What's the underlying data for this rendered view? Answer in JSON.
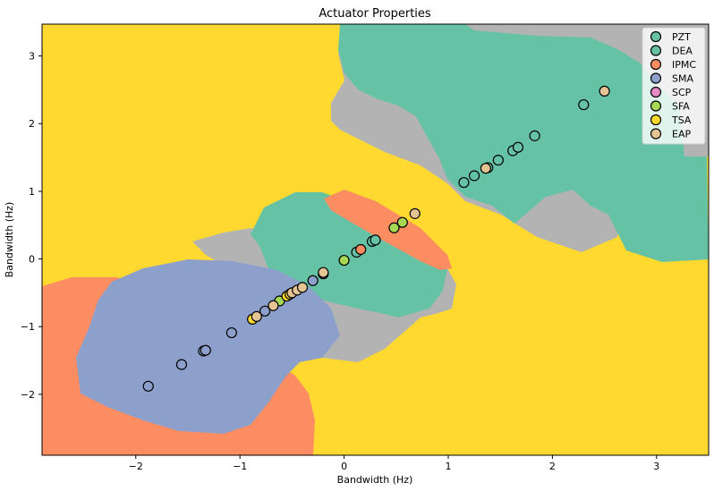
{
  "chart_data": {
    "type": "scatter",
    "title": "Actuator Properties",
    "xlabel": "Bandwidth (Hz)",
    "ylabel": "Bandwidth (Hz)",
    "xlim": [
      -2.9,
      3.5
    ],
    "ylim": [
      -2.9,
      3.47
    ],
    "xticks": [
      -2,
      -1,
      0,
      1,
      2,
      3
    ],
    "yticks": [
      -2,
      -1,
      0,
      1,
      2,
      3
    ],
    "xtick_labels": [
      "−2",
      "−1",
      "0",
      "1",
      "2",
      "3"
    ],
    "ytick_labels": [
      "−2",
      "−1",
      "0",
      "1",
      "2",
      "3"
    ],
    "legend_position": "top-right",
    "background_regions": "decision regions per class",
    "series": [
      {
        "name": "PZT",
        "color": "#66c2a5",
        "points": []
      },
      {
        "name": "DEA",
        "color": "#66c2a5",
        "points": [
          [
            0.12,
            0.1
          ],
          [
            0.27,
            0.26
          ],
          [
            0.3,
            0.28
          ],
          [
            1.15,
            1.13
          ],
          [
            1.25,
            1.23
          ],
          [
            1.38,
            1.35
          ],
          [
            1.48,
            1.46
          ],
          [
            1.62,
            1.6
          ],
          [
            1.67,
            1.65
          ],
          [
            1.83,
            1.82
          ],
          [
            2.3,
            2.28
          ]
        ]
      },
      {
        "name": "IPMC",
        "color": "#fc8d62",
        "points": [
          [
            0.16,
            0.14
          ]
        ]
      },
      {
        "name": "SMA",
        "color": "#8da0cb",
        "points": [
          [
            -1.88,
            -1.88
          ],
          [
            -1.56,
            -1.56
          ],
          [
            -1.35,
            -1.36
          ],
          [
            -1.33,
            -1.35
          ],
          [
            -1.08,
            -1.09
          ],
          [
            -0.76,
            -0.77
          ],
          [
            -0.3,
            -0.32
          ],
          [
            -0.2,
            -0.22
          ]
        ]
      },
      {
        "name": "SCP",
        "color": "#e78ac3",
        "points": []
      },
      {
        "name": "SFA",
        "color": "#a6d854",
        "points": [
          [
            -0.62,
            -0.62
          ],
          [
            0.0,
            -0.02
          ],
          [
            0.48,
            0.46
          ],
          [
            0.56,
            0.54
          ]
        ]
      },
      {
        "name": "TSA",
        "color": "#ffd92f",
        "points": [
          [
            -0.88,
            -0.89
          ],
          [
            -0.55,
            -0.55
          ],
          [
            -0.52,
            -0.52
          ]
        ]
      },
      {
        "name": "EAP",
        "color": "#e5c494",
        "points": [
          [
            -0.84,
            -0.85
          ],
          [
            -0.68,
            -0.69
          ],
          [
            -0.5,
            -0.5
          ],
          [
            -0.45,
            -0.46
          ],
          [
            -0.4,
            -0.42
          ],
          [
            -0.2,
            -0.2
          ],
          [
            0.68,
            0.67
          ],
          [
            1.36,
            1.34
          ],
          [
            2.5,
            2.48
          ]
        ]
      }
    ]
  }
}
